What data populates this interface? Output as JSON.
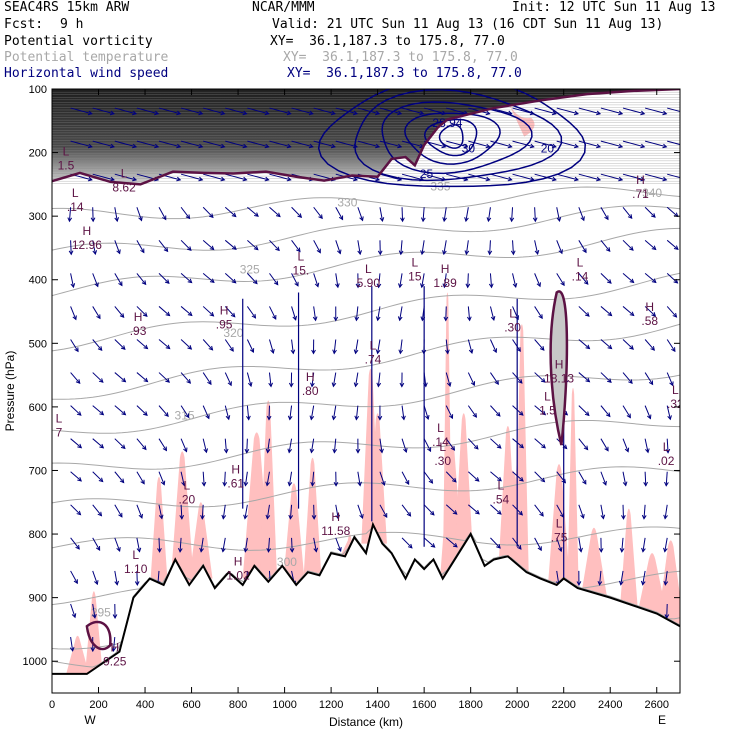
{
  "header": {
    "model": "SEAC4RS 15km ARW",
    "center": "NCAR/MMM",
    "init": "Init: 12 UTC Sun 11 Aug 13",
    "fcst_label": "Fcst:",
    "fcst_value": "9 h",
    "valid": "Valid: 21 UTC Sun 11 Aug 13 (16 CDT Sun 11 Aug 13)",
    "fields": [
      {
        "name": "Potential vorticity",
        "xy": "XY=  36.1,187.3 to 175.8, 77.0",
        "color": "#000000"
      },
      {
        "name": "Potential temperature",
        "xy": "XY=  36.1,187.3 to 175.8, 77.0",
        "color": "#a8a8a8"
      },
      {
        "name": "Horizontal wind speed",
        "xy": "XY=  36.1,187.3 to 175.8, 77.0",
        "color": "#00007f"
      }
    ]
  },
  "chart_data": {
    "type": "cross-section",
    "xlabel": "Distance (km)",
    "ylabel": "Pressure (hPa)",
    "xlim": [
      0,
      2700
    ],
    "ylim": [
      1050,
      100
    ],
    "x_ticks": [
      0,
      200,
      400,
      600,
      800,
      1000,
      1200,
      1400,
      1600,
      1800,
      2000,
      2200,
      2400,
      2600
    ],
    "y_ticks": [
      100,
      200,
      300,
      400,
      500,
      600,
      700,
      800,
      900,
      1000
    ],
    "x_end_labels": {
      "left": "W",
      "right": "E"
    },
    "terrain": [
      [
        0,
        1020
      ],
      [
        150,
        1020
      ],
      [
        290,
        985
      ],
      [
        350,
        900
      ],
      [
        420,
        870
      ],
      [
        480,
        880
      ],
      [
        530,
        840
      ],
      [
        590,
        880
      ],
      [
        650,
        850
      ],
      [
        700,
        885
      ],
      [
        760,
        860
      ],
      [
        820,
        880
      ],
      [
        870,
        850
      ],
      [
        930,
        875
      ],
      [
        990,
        850
      ],
      [
        1050,
        880
      ],
      [
        1100,
        860
      ],
      [
        1150,
        865
      ],
      [
        1200,
        830
      ],
      [
        1260,
        835
      ],
      [
        1300,
        805
      ],
      [
        1350,
        830
      ],
      [
        1380,
        785
      ],
      [
        1420,
        815
      ],
      [
        1460,
        830
      ],
      [
        1520,
        870
      ],
      [
        1560,
        840
      ],
      [
        1600,
        855
      ],
      [
        1640,
        840
      ],
      [
        1680,
        870
      ],
      [
        1740,
        835
      ],
      [
        1800,
        800
      ],
      [
        1860,
        850
      ],
      [
        1900,
        840
      ],
      [
        1960,
        835
      ],
      [
        2040,
        860
      ],
      [
        2100,
        870
      ],
      [
        2170,
        880
      ],
      [
        2200,
        870
      ],
      [
        2260,
        885
      ],
      [
        2400,
        900
      ],
      [
        2600,
        925
      ],
      [
        2700,
        945
      ]
    ],
    "tropopause_pv": [
      [
        0,
        245
      ],
      [
        120,
        232
      ],
      [
        250,
        246
      ],
      [
        380,
        250
      ],
      [
        520,
        230
      ],
      [
        650,
        232
      ],
      [
        780,
        233
      ],
      [
        920,
        230
      ],
      [
        1050,
        238
      ],
      [
        1170,
        244
      ],
      [
        1290,
        236
      ],
      [
        1400,
        238
      ],
      [
        1460,
        210
      ],
      [
        1520,
        207
      ],
      [
        1560,
        220
      ],
      [
        1600,
        188
      ],
      [
        1660,
        160
      ],
      [
        1700,
        148
      ],
      [
        1900,
        130
      ],
      [
        2100,
        118
      ],
      [
        2300,
        108
      ],
      [
        2500,
        103
      ],
      [
        2700,
        100
      ]
    ],
    "wind_speed_contours": {
      "levels": [
        20,
        25,
        30
      ],
      "labels": [
        "28.94",
        "30",
        "25",
        "20"
      ]
    },
    "theta_labels": [
      {
        "x": 1010,
        "p": 850,
        "text": "300"
      },
      {
        "x": 210,
        "p": 930,
        "text": "295"
      },
      {
        "x": 570,
        "p": 620,
        "text": "315"
      },
      {
        "x": 780,
        "p": 490,
        "text": "320"
      },
      {
        "x": 850,
        "p": 390,
        "text": "325"
      },
      {
        "x": 1270,
        "p": 285,
        "text": "330"
      },
      {
        "x": 1670,
        "p": 260,
        "text": "335"
      },
      {
        "x": 2580,
        "p": 270,
        "text": "340"
      }
    ],
    "highs_lows": [
      {
        "kind": "L",
        "value": "1.5",
        "x": 60,
        "p": 225
      },
      {
        "kind": "L",
        "value": ".14",
        "x": 100,
        "p": 290
      },
      {
        "kind": "L",
        "value": "8.62",
        "x": 310,
        "p": 260
      },
      {
        "kind": "H",
        "value": "12.96",
        "x": 150,
        "p": 350
      },
      {
        "kind": "L",
        "value": "15.",
        "x": 1070,
        "p": 390
      },
      {
        "kind": "L",
        "value": "5.90",
        "x": 1360,
        "p": 410
      },
      {
        "kind": "L",
        "value": "15",
        "x": 1560,
        "p": 400
      },
      {
        "kind": "H",
        "value": "1.89",
        "x": 1690,
        "p": 410
      },
      {
        "kind": "L",
        "value": ".14",
        "x": 2270,
        "p": 400
      },
      {
        "kind": "H",
        "value": ".71",
        "x": 2530,
        "p": 270
      },
      {
        "kind": "H",
        "value": ".93",
        "x": 370,
        "p": 485
      },
      {
        "kind": "H",
        "value": ".95",
        "x": 740,
        "p": 475
      },
      {
        "kind": "L",
        "value": ".30",
        "x": 1980,
        "p": 480
      },
      {
        "kind": "H",
        "value": ".58",
        "x": 2570,
        "p": 470
      },
      {
        "kind": "L",
        "value": ".74",
        "x": 1380,
        "p": 530
      },
      {
        "kind": "H",
        "value": "18.13",
        "x": 2180,
        "p": 560
      },
      {
        "kind": "H",
        "value": ".80",
        "x": 1110,
        "p": 580
      },
      {
        "kind": "L",
        "value": "1.5",
        "x": 2130,
        "p": 610
      },
      {
        "kind": "L",
        "value": ".32",
        "x": 2680,
        "p": 600
      },
      {
        "kind": "L",
        "value": "7",
        "x": 30,
        "p": 645
      },
      {
        "kind": "L",
        "value": ".14",
        "x": 1670,
        "p": 660
      },
      {
        "kind": "L",
        "value": ".30",
        "x": 1680,
        "p": 690
      },
      {
        "kind": "L",
        "value": ".02",
        "x": 2640,
        "p": 690
      },
      {
        "kind": "H",
        "value": ".61",
        "x": 790,
        "p": 725
      },
      {
        "kind": "L",
        "value": ".20",
        "x": 580,
        "p": 750
      },
      {
        "kind": "L",
        "value": ".54",
        "x": 1930,
        "p": 750
      },
      {
        "kind": "H",
        "value": "11.58",
        "x": 1220,
        "p": 800
      },
      {
        "kind": "L",
        "value": ".75",
        "x": 2180,
        "p": 810
      },
      {
        "kind": "L",
        "value": "1.10",
        "x": 360,
        "p": 860
      },
      {
        "kind": "H",
        "value": "1.02",
        "x": 800,
        "p": 870
      },
      {
        "kind": "H",
        "value": "9.25",
        "x": 270,
        "p": 1005
      }
    ],
    "colors": {
      "pv": "#5c1244",
      "theta": "#a8a8a8",
      "wind": "#00007f",
      "shading": "#ffbfbf",
      "terrain": "#000000"
    }
  }
}
